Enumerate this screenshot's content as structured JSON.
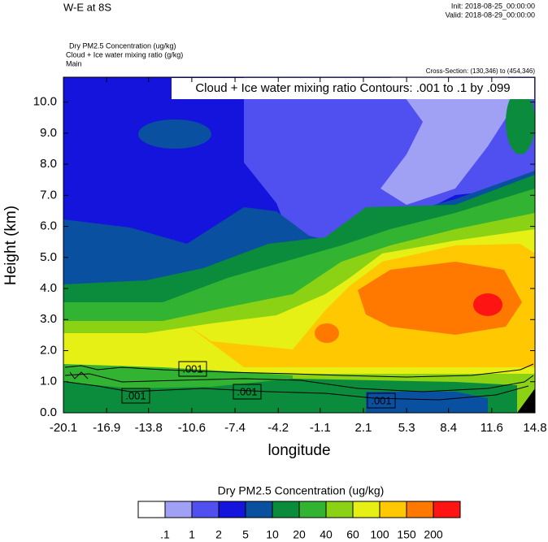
{
  "chart_data": {
    "type": "contour",
    "title": "W-E at 8S",
    "init": "Init: 2018-08-25_00:00:00",
    "valid": "Valid: 2018-08-29_00:00:00",
    "field_labels": [
      "Dry PM2.5 Concentration   (ug/kg)",
      "Cloud + Ice water mixing ratio   (g/kg)",
      "Main"
    ],
    "cross_section": "Cross-Section: (130,346) to (454,346)",
    "contour_note": "Cloud + Ice water mixing ratio Contours: .001 to .1 by .099",
    "contour_labels": [
      ".001",
      ".001",
      ".001",
      ".001"
    ],
    "ylabel": "Height (km)",
    "xlabel": "longitude",
    "ylim": [
      0,
      10.8
    ],
    "yticks": [
      {
        "value": 0,
        "label": "0.0"
      },
      {
        "value": 1,
        "label": "1.0"
      },
      {
        "value": 2,
        "label": "2.0"
      },
      {
        "value": 3,
        "label": "3.0"
      },
      {
        "value": 4,
        "label": "4.0"
      },
      {
        "value": 5,
        "label": "5.0"
      },
      {
        "value": 6,
        "label": "6.0"
      },
      {
        "value": 7,
        "label": "7.0"
      },
      {
        "value": 8,
        "label": "8.0"
      },
      {
        "value": 9,
        "label": "9.0"
      },
      {
        "value": 10,
        "label": "10.0"
      }
    ],
    "xlim": [
      -20.1,
      14.8
    ],
    "xticks": [
      -20.1,
      -16.9,
      -13.8,
      -10.6,
      -7.4,
      -4.2,
      -1.1,
      2.1,
      5.3,
      8.4,
      11.6,
      14.8
    ],
    "colorbar_title": "Dry PM2.5 Concentration  (ug/kg)",
    "colorbar_levels": [
      {
        "value": 0.1,
        "label": ".1"
      },
      1,
      2,
      5,
      10,
      20,
      40,
      60,
      100,
      150,
      200
    ],
    "colorbar_colors": [
      "#ffffff",
      "#a0a0f5",
      "#5050f0",
      "#1414dc",
      "#0a50a0",
      "#0a8c3c",
      "#32b432",
      "#8cd214",
      "#e6f014",
      "#ffc800",
      "#ff7800",
      "#ff1414"
    ]
  }
}
